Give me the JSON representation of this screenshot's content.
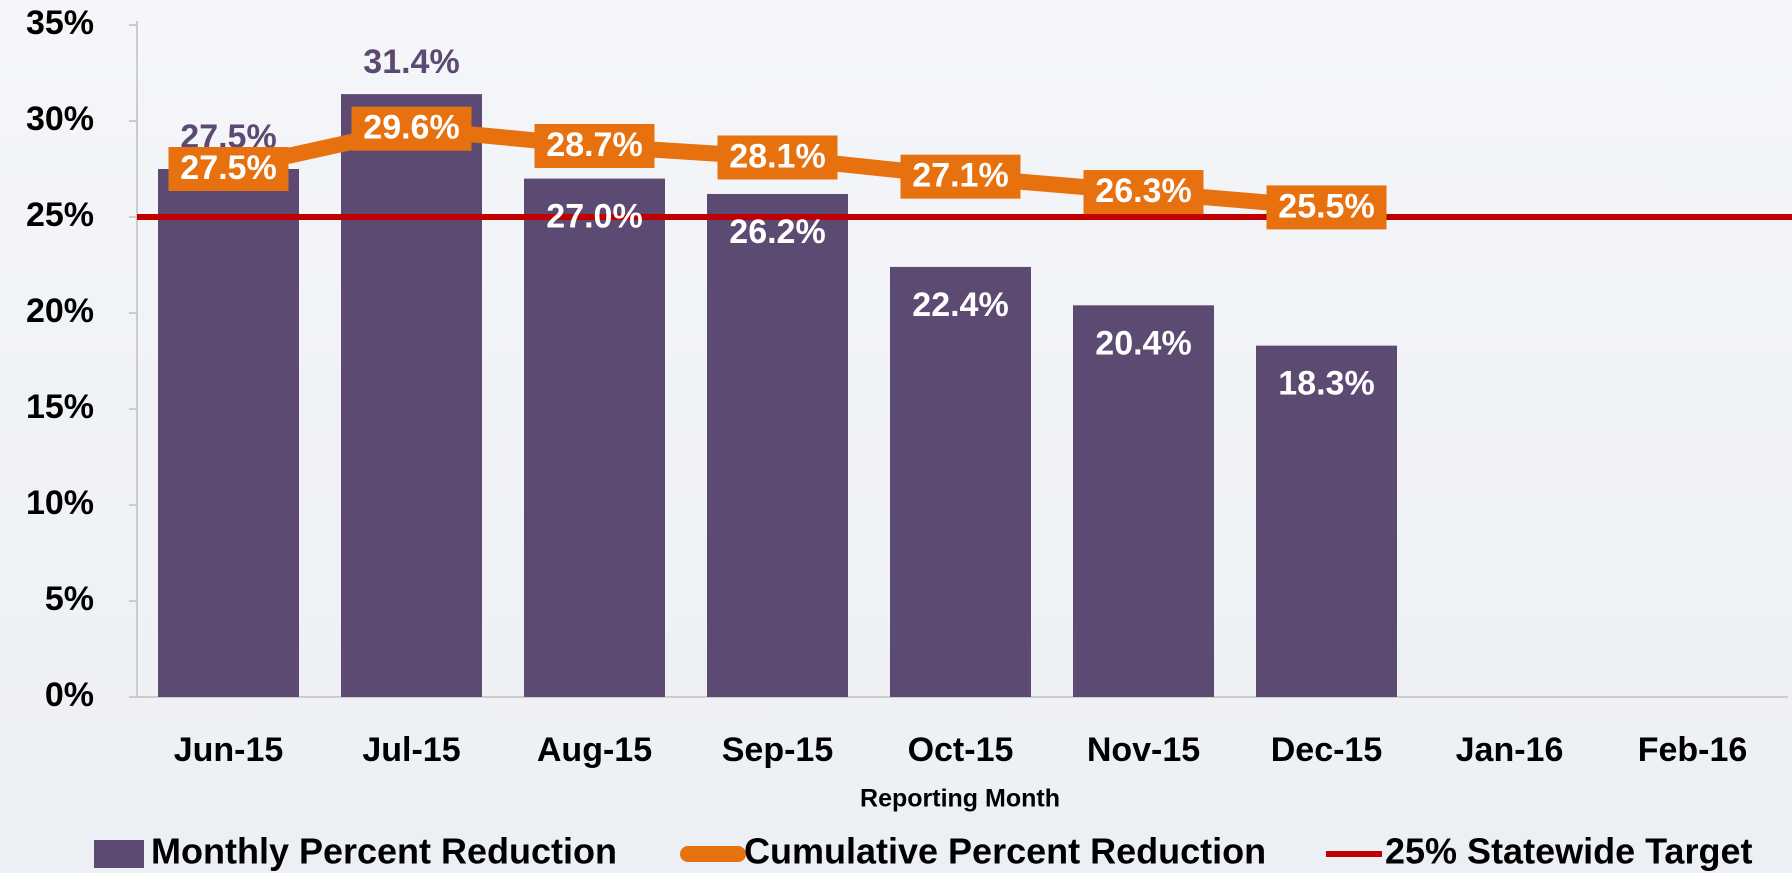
{
  "chart_data": {
    "type": "bar",
    "x_label": "Reporting Month",
    "categories": [
      "Jun-15",
      "Jul-15",
      "Aug-15",
      "Sep-15",
      "Oct-15",
      "Nov-15",
      "Dec-15",
      "Jan-16",
      "Feb-16"
    ],
    "series": [
      {
        "name": "Monthly Percent Reduction",
        "color": "#5c4a72",
        "type": "bar",
        "values": [
          27.5,
          31.4,
          27.0,
          26.2,
          22.4,
          20.4,
          18.3,
          null,
          null
        ],
        "value_labels": [
          "27.5%",
          "31.4%",
          "27.0%",
          "26.2%",
          "22.4%",
          "20.4%",
          "18.3%",
          null,
          null
        ]
      },
      {
        "name": "Cumulative Percent Reduction",
        "color": "#e8710f",
        "type": "line",
        "values": [
          27.5,
          29.6,
          28.7,
          28.1,
          27.1,
          26.3,
          25.5,
          null,
          null
        ],
        "value_labels": [
          "27.5%",
          "29.6%",
          "28.7%",
          "28.1%",
          "27.1%",
          "26.3%",
          "25.5%",
          null,
          null
        ]
      }
    ],
    "target": {
      "name": "25% Statewide Target",
      "color": "#c00000",
      "value": 25
    },
    "ylim": [
      0,
      35
    ],
    "yticks": [
      {
        "value": 0,
        "label": "0%"
      },
      {
        "value": 5,
        "label": "5%"
      },
      {
        "value": 10,
        "label": "10%"
      },
      {
        "value": 15,
        "label": "15%"
      },
      {
        "value": 20,
        "label": "20%"
      },
      {
        "value": 25,
        "label": "25%"
      },
      {
        "value": 30,
        "label": "30%"
      },
      {
        "value": 35,
        "label": "35%"
      }
    ]
  }
}
